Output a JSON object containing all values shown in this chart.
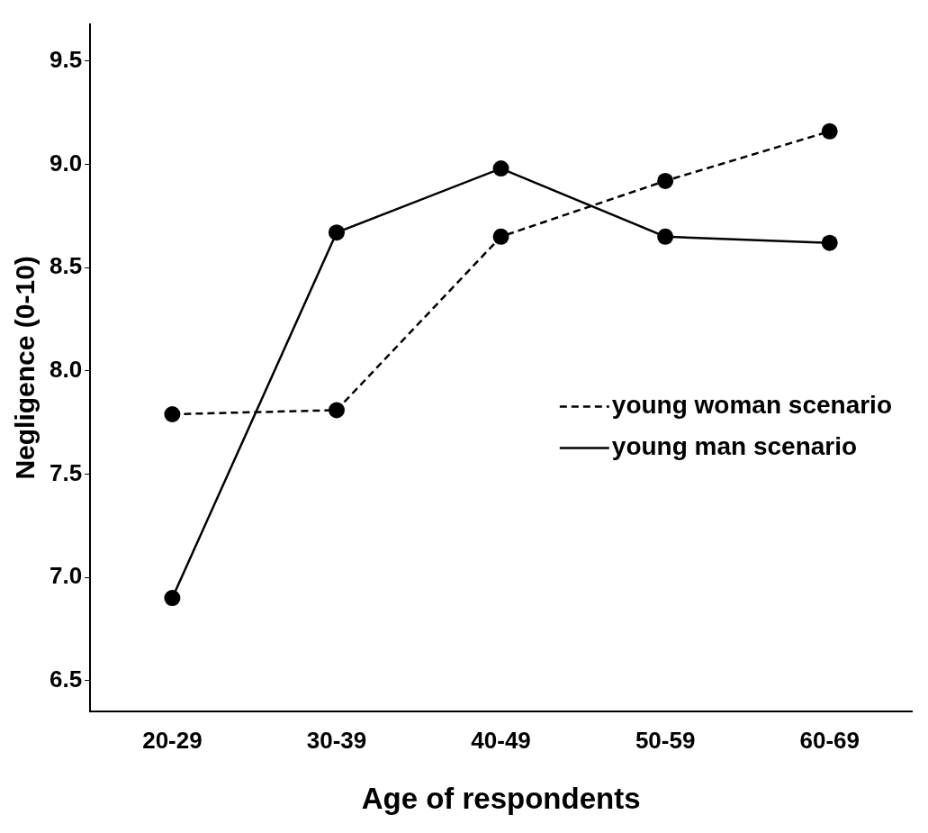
{
  "chart_data": {
    "type": "line",
    "xlabel": "Age of respondents",
    "ylabel": "Negligence (0-10)",
    "categories": [
      "20-29",
      "30-39",
      "40-49",
      "50-59",
      "60-69"
    ],
    "series": [
      {
        "name": "young woman scenario",
        "color": "#000000",
        "line_style": "dashed",
        "values": [
          7.79,
          7.81,
          8.65,
          8.92,
          9.16
        ]
      },
      {
        "name": "young man scenario",
        "color": "#000000",
        "line_style": "solid",
        "values": [
          6.9,
          8.67,
          8.98,
          8.65,
          8.62
        ]
      }
    ],
    "ylim": [
      6.35,
      9.68
    ],
    "yticks": [
      {
        "value": 6.5,
        "label": "6.5"
      },
      {
        "value": 7.0,
        "label": "7.0"
      },
      {
        "value": 7.5,
        "label": "7.5"
      },
      {
        "value": 8.0,
        "label": "8.0"
      },
      {
        "value": 8.5,
        "label": "8.5"
      },
      {
        "value": 9.0,
        "label": "9.0"
      },
      {
        "value": 9.5,
        "label": "9.5"
      }
    ],
    "grid": false,
    "legend": "right",
    "marker": "circle"
  }
}
